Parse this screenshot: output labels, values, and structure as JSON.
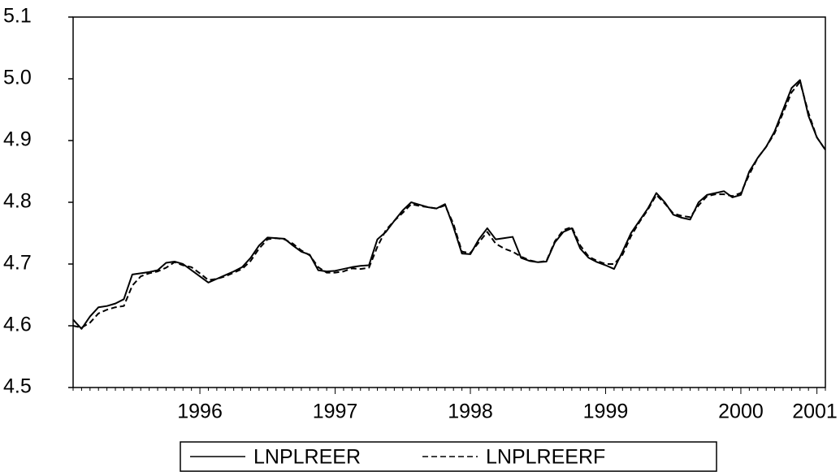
{
  "chart_data": {
    "type": "line",
    "categories": [
      null,
      null,
      null,
      null,
      null,
      null,
      null,
      null,
      null,
      null,
      null,
      null,
      null,
      null,
      null,
      "1996",
      null,
      null,
      null,
      null,
      null,
      null,
      null,
      null,
      null,
      null,
      null,
      null,
      null,
      null,
      null,
      "1997",
      null,
      null,
      null,
      null,
      null,
      null,
      null,
      null,
      null,
      null,
      null,
      null,
      null,
      null,
      null,
      "1998",
      null,
      null,
      null,
      null,
      null,
      null,
      null,
      null,
      null,
      null,
      null,
      null,
      null,
      null,
      null,
      "1999",
      null,
      null,
      null,
      null,
      null,
      null,
      null,
      null,
      null,
      null,
      null,
      null,
      null,
      null,
      null,
      "2000",
      null,
      null,
      null,
      null,
      null,
      null,
      null,
      null,
      "2001",
      null
    ],
    "series": [
      {
        "name": "LNPLREER",
        "color": "#000000",
        "dash": false,
        "values": [
          4.61,
          4.595,
          4.615,
          4.63,
          4.632,
          4.636,
          4.643,
          4.683,
          4.685,
          4.687,
          4.69,
          4.702,
          4.704,
          4.7,
          4.69,
          4.68,
          4.67,
          4.676,
          4.682,
          4.688,
          4.695,
          4.71,
          4.73,
          4.743,
          4.742,
          4.741,
          4.73,
          4.72,
          4.715,
          4.69,
          4.688,
          4.689,
          4.692,
          4.695,
          4.697,
          4.698,
          4.74,
          4.752,
          4.77,
          4.787,
          4.8,
          4.796,
          4.792,
          4.79,
          4.797,
          4.76,
          4.717,
          4.716,
          4.74,
          4.758,
          4.74,
          4.742,
          4.744,
          4.71,
          4.705,
          4.703,
          4.704,
          4.735,
          4.752,
          4.758,
          4.725,
          4.71,
          4.703,
          4.698,
          4.692,
          4.72,
          4.75,
          4.77,
          4.79,
          4.815,
          4.8,
          4.78,
          4.775,
          4.772,
          4.8,
          4.812,
          4.815,
          4.818,
          4.808,
          4.812,
          4.85,
          4.872,
          4.89,
          4.915,
          4.95,
          4.985,
          4.998,
          4.94,
          4.905,
          4.885
        ]
      },
      {
        "name": "LNPLREERF",
        "color": "#000000",
        "dash": true,
        "values": [
          4.6,
          4.597,
          4.605,
          4.62,
          4.626,
          4.63,
          4.632,
          4.665,
          4.68,
          4.685,
          4.688,
          4.694,
          4.703,
          4.698,
          4.695,
          4.685,
          4.674,
          4.676,
          4.68,
          4.686,
          4.692,
          4.705,
          4.725,
          4.74,
          4.742,
          4.74,
          4.733,
          4.722,
          4.714,
          4.695,
          4.686,
          4.686,
          4.688,
          4.693,
          4.692,
          4.694,
          4.728,
          4.755,
          4.77,
          4.783,
          4.797,
          4.794,
          4.792,
          4.79,
          4.795,
          4.765,
          4.72,
          4.718,
          4.735,
          4.752,
          4.733,
          4.725,
          4.72,
          4.712,
          4.706,
          4.703,
          4.705,
          4.737,
          4.755,
          4.76,
          4.73,
          4.712,
          4.705,
          4.7,
          4.7,
          4.715,
          4.745,
          4.768,
          4.788,
          4.812,
          4.798,
          4.782,
          4.778,
          4.776,
          4.795,
          4.81,
          4.813,
          4.813,
          4.81,
          4.815,
          4.845,
          4.872,
          4.89,
          4.912,
          4.945,
          4.978,
          4.995,
          4.945,
          4.905,
          4.885
        ]
      }
    ],
    "ylim": [
      4.5,
      5.1
    ],
    "yticks": [
      4.5,
      4.6,
      4.7,
      4.8,
      4.9,
      {
        "value": 5,
        "label": "5.0"
      },
      5.1
    ],
    "grid": false,
    "legend": "bottom"
  }
}
